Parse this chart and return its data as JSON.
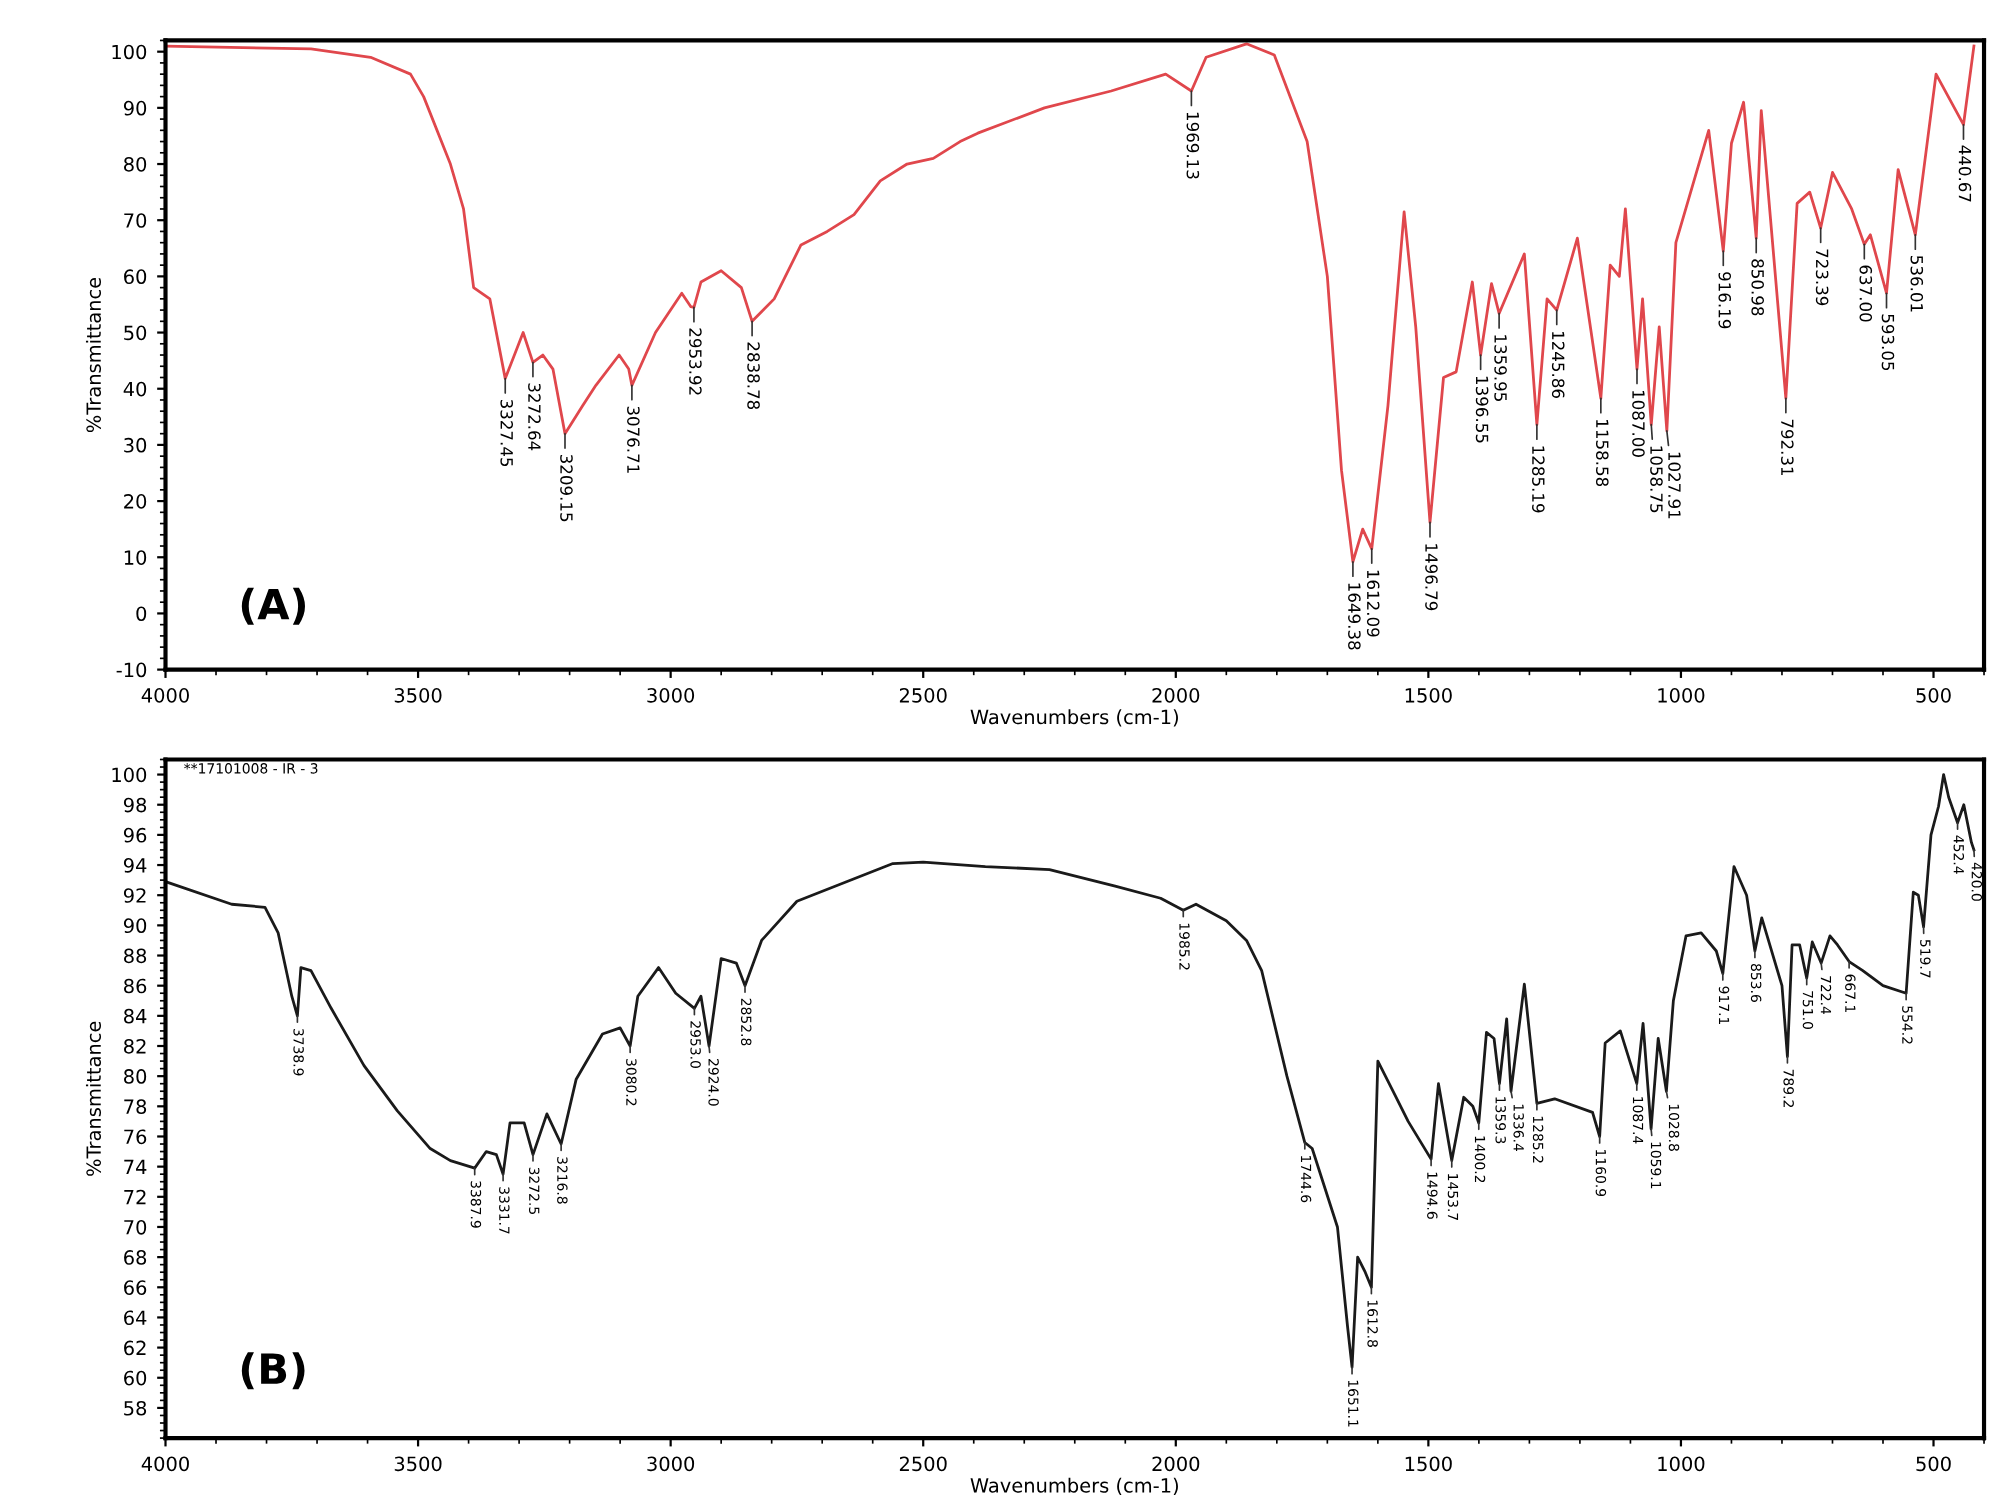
{
  "chart_data": [
    {
      "type": "line",
      "xlabel": "Wavenumbers (cm-1)",
      "ylabel": "%Transmittance",
      "xlim": [
        4000,
        400
      ],
      "ylim": [
        -10,
        102
      ],
      "xticks": [
        4000,
        3500,
        3000,
        2500,
        2000,
        1500,
        1000,
        500
      ],
      "yticks": [
        -10,
        0,
        10,
        20,
        30,
        40,
        50,
        60,
        70,
        80,
        90,
        100
      ],
      "x": [
        4000,
        3712,
        3594,
        3515,
        3489,
        3436,
        3410,
        3390,
        3358,
        3327.45,
        3292,
        3272.64,
        3253,
        3233,
        3209.15,
        3174,
        3148,
        3102,
        3083,
        3076.71,
        3030,
        2978,
        2960,
        2953.92,
        2940,
        2900,
        2860,
        2838.78,
        2795,
        2742,
        2690,
        2637,
        2585,
        2532,
        2480,
        2427,
        2392,
        2260,
        2128,
        2020,
        1969.13,
        1940,
        1860,
        1805,
        1740,
        1700,
        1672,
        1649.38,
        1630,
        1612.09,
        1580,
        1548,
        1525,
        1496.79,
        1470,
        1445,
        1413,
        1396.55,
        1375,
        1359.95,
        1310,
        1285.19,
        1265,
        1245.86,
        1205,
        1158.58,
        1140,
        1122,
        1110,
        1087.0,
        1076,
        1058.75,
        1043,
        1027.91,
        1010,
        945,
        916.19,
        900,
        876,
        850.98,
        841,
        792.31,
        770,
        745,
        723.39,
        700,
        662,
        637.0,
        625,
        593.05,
        570,
        536.01,
        495,
        440.67,
        420
      ],
      "series": [
        {
          "color": "#e0474c",
          "values": [
            101,
            100.5,
            99,
            96,
            92,
            80,
            72,
            58,
            56,
            41.8,
            50,
            44.7,
            46,
            43.5,
            32,
            37,
            40.6,
            46,
            43.5,
            40.6,
            50,
            57,
            54.6,
            54.5,
            59,
            61,
            58,
            52,
            56,
            65.6,
            68,
            71,
            77,
            80,
            81,
            84,
            85.5,
            90,
            93,
            96,
            93,
            99,
            101.4,
            99.4,
            84,
            60,
            25.5,
            9.2,
            15,
            11.5,
            37,
            71.5,
            51,
            16.2,
            42,
            43,
            59,
            46,
            58.7,
            53.4,
            64,
            33.6,
            56,
            54,
            66.8,
            38.3,
            62,
            60,
            72,
            43.5,
            56,
            33.6,
            51,
            32.5,
            66,
            86,
            64.5,
            83.7,
            91,
            66.8,
            89.5,
            38.3,
            73,
            75,
            68.6,
            78.5,
            72,
            65.7,
            67.4,
            57,
            79,
            67.4,
            96,
            87,
            101
          ]
        }
      ],
      "annotations": [
        "(A)",
        {
          "text": "3327.45",
          "x": 3327.45,
          "y": 41.8
        },
        {
          "text": "3272.64",
          "x": 3272.64,
          "y": 44.7
        },
        {
          "text": "3209.15",
          "x": 3209.15,
          "y": 32
        },
        {
          "text": "3076.71",
          "x": 3076.71,
          "y": 40.6
        },
        {
          "text": "2953.92",
          "x": 2953.92,
          "y": 54.5
        },
        {
          "text": "2838.78",
          "x": 2838.78,
          "y": 52
        },
        {
          "text": "1969.13",
          "x": 1969.13,
          "y": 93
        },
        {
          "text": "1649.38",
          "x": 1649.38,
          "y": 9.2
        },
        {
          "text": "1612.09",
          "x": 1612.09,
          "y": 11.5
        },
        {
          "text": "1496.79",
          "x": 1496.79,
          "y": 16.2
        },
        {
          "text": "1396.55",
          "x": 1396.55,
          "y": 46
        },
        {
          "text": "1359.95",
          "x": 1359.95,
          "y": 53.4
        },
        {
          "text": "1285.19",
          "x": 1285.19,
          "y": 33.6
        },
        {
          "text": "1245.86",
          "x": 1245.86,
          "y": 54
        },
        {
          "text": "1158.58",
          "x": 1158.58,
          "y": 38.3
        },
        {
          "text": "1087.00",
          "x": 1087.0,
          "y": 43.5
        },
        {
          "text": "1058.75",
          "x": 1058.75,
          "y": 33.6
        },
        {
          "text": "1027.91",
          "x": 1027.91,
          "y": 32.5
        },
        {
          "text": "916.19",
          "x": 916.19,
          "y": 64.5
        },
        {
          "text": "850.98",
          "x": 850.98,
          "y": 66.8
        },
        {
          "text": "792.31",
          "x": 792.31,
          "y": 38.3
        },
        {
          "text": "723.39",
          "x": 723.39,
          "y": 68.6
        },
        {
          "text": "637.00",
          "x": 637.0,
          "y": 65.7
        },
        {
          "text": "593.05",
          "x": 593.05,
          "y": 57
        },
        {
          "text": "536.01",
          "x": 536.01,
          "y": 67.4
        },
        {
          "text": "440.67",
          "x": 440.67,
          "y": 87
        }
      ]
    },
    {
      "type": "line",
      "xlabel": "Wavenumbers (cm-1)",
      "ylabel": "%Transmittance",
      "xlim": [
        4000,
        400
      ],
      "ylim": [
        56,
        101
      ],
      "xticks": [
        4000,
        3500,
        3000,
        2500,
        2000,
        1500,
        1000,
        500
      ],
      "yticks": [
        58,
        60,
        62,
        64,
        66,
        68,
        70,
        72,
        74,
        76,
        78,
        80,
        82,
        84,
        86,
        88,
        90,
        92,
        94,
        96,
        98,
        100
      ],
      "x": [
        4000,
        3869,
        3803,
        3777,
        3750,
        3738.9,
        3732,
        3712,
        3672,
        3607,
        3541,
        3476,
        3436,
        3387.9,
        3365,
        3345,
        3331.7,
        3318,
        3290,
        3272.5,
        3245,
        3216.8,
        3187,
        3135,
        3100,
        3080.2,
        3065,
        3024,
        2990,
        2953.0,
        2940,
        2924.0,
        2900,
        2870,
        2852.8,
        2820,
        2750,
        2560,
        2500,
        2377,
        2250,
        2120,
        2030,
        1985.2,
        1960,
        1900,
        1860,
        1830,
        1780,
        1744.6,
        1730,
        1680,
        1660,
        1651.1,
        1640,
        1625,
        1612.8,
        1600,
        1570,
        1540,
        1494.6,
        1480,
        1453.7,
        1430,
        1412,
        1400.2,
        1385,
        1370,
        1359.3,
        1345,
        1336.4,
        1310,
        1285.2,
        1250,
        1175,
        1160.9,
        1150,
        1120,
        1087.4,
        1075,
        1059.1,
        1045,
        1028.8,
        1015,
        990,
        960,
        930,
        917.1,
        895,
        870,
        853.6,
        840,
        800,
        789.2,
        780,
        765,
        751.0,
        740,
        722.4,
        705,
        690,
        667.1,
        640,
        600,
        554.2,
        540,
        530,
        519.7,
        505,
        490,
        480,
        470,
        452.4,
        440,
        425,
        420.0
      ],
      "series": [
        {
          "color": "#1a1a1a",
          "values": [
            92.9,
            91.4,
            91.2,
            89.5,
            85.3,
            84,
            87.2,
            87,
            84.5,
            80.7,
            77.7,
            75.2,
            74.4,
            73.9,
            75,
            74.8,
            73.5,
            76.9,
            76.9,
            74.8,
            77.5,
            75.5,
            79.8,
            82.8,
            83.2,
            82,
            85.3,
            87.2,
            85.5,
            84.5,
            85.3,
            82,
            87.8,
            87.5,
            86,
            89,
            91.6,
            94.1,
            94.2,
            93.9,
            93.7,
            92.6,
            91.8,
            91,
            91.4,
            90.3,
            89,
            87,
            80,
            75.6,
            75.2,
            70,
            63.4,
            60.7,
            68,
            67,
            66,
            81,
            79,
            77,
            74.5,
            79.5,
            74.4,
            78.6,
            78,
            76.9,
            82.9,
            82.5,
            79.5,
            83.8,
            79,
            86.1,
            78.2,
            78.5,
            77.6,
            76,
            82.2,
            83,
            79.5,
            83.5,
            76.5,
            82.5,
            79,
            85,
            89.3,
            89.5,
            88.3,
            86.8,
            93.9,
            92,
            88.3,
            90.5,
            86,
            81.3,
            88.7,
            88.7,
            86.5,
            88.9,
            87.5,
            89.3,
            88.7,
            87.6,
            87,
            86,
            85.5,
            92.2,
            92,
            89.9,
            96,
            97.9,
            100,
            98.5,
            96.8,
            98,
            95.5,
            95
          ]
        }
      ],
      "annotations": [
        "(B)",
        "**17101008 - IR - 3",
        {
          "text": "3738.9",
          "x": 3738.9,
          "y": 84
        },
        {
          "text": "3387.9",
          "x": 3387.9,
          "y": 73.9
        },
        {
          "text": "3331.7",
          "x": 3331.7,
          "y": 73.5
        },
        {
          "text": "3272.5",
          "x": 3272.5,
          "y": 74.8
        },
        {
          "text": "3216.8",
          "x": 3216.8,
          "y": 75.5
        },
        {
          "text": "3080.2",
          "x": 3080.2,
          "y": 82
        },
        {
          "text": "2953.0",
          "x": 2953.0,
          "y": 84.5
        },
        {
          "text": "2924.0",
          "x": 2924.0,
          "y": 82
        },
        {
          "text": "2852.8",
          "x": 2852.8,
          "y": 86
        },
        {
          "text": "1985.2",
          "x": 1985.2,
          "y": 91
        },
        {
          "text": "1744.6",
          "x": 1744.6,
          "y": 75.6
        },
        {
          "text": "1651.1",
          "x": 1651.1,
          "y": 60.7
        },
        {
          "text": "1612.8",
          "x": 1612.8,
          "y": 66
        },
        {
          "text": "1494.6",
          "x": 1494.6,
          "y": 74.5
        },
        {
          "text": "1453.7",
          "x": 1453.7,
          "y": 74.4
        },
        {
          "text": "1400.2",
          "x": 1400.2,
          "y": 76.9
        },
        {
          "text": "1359.3",
          "x": 1359.3,
          "y": 79.5
        },
        {
          "text": "1336.4",
          "x": 1336.4,
          "y": 79
        },
        {
          "text": "1285.2",
          "x": 1285.2,
          "y": 78.2
        },
        {
          "text": "1160.9",
          "x": 1160.9,
          "y": 76
        },
        {
          "text": "1087.4",
          "x": 1087.4,
          "y": 79.5
        },
        {
          "text": "1059.1",
          "x": 1059.1,
          "y": 76.5
        },
        {
          "text": "1028.8",
          "x": 1028.8,
          "y": 79
        },
        {
          "text": "917.1",
          "x": 917.1,
          "y": 86.8
        },
        {
          "text": "853.6",
          "x": 853.6,
          "y": 88.3
        },
        {
          "text": "789.2",
          "x": 789.2,
          "y": 81.3
        },
        {
          "text": "751.0",
          "x": 751.0,
          "y": 86.5
        },
        {
          "text": "722.4",
          "x": 722.4,
          "y": 87.5
        },
        {
          "text": "667.1",
          "x": 667.1,
          "y": 87.6
        },
        {
          "text": "554.2",
          "x": 554.2,
          "y": 85.5
        },
        {
          "text": "519.7",
          "x": 519.7,
          "y": 89.9
        },
        {
          "text": "452.4",
          "x": 452.4,
          "y": 96.8
        },
        {
          "text": "420.0",
          "x": 420.0,
          "y": 95
        }
      ]
    }
  ]
}
